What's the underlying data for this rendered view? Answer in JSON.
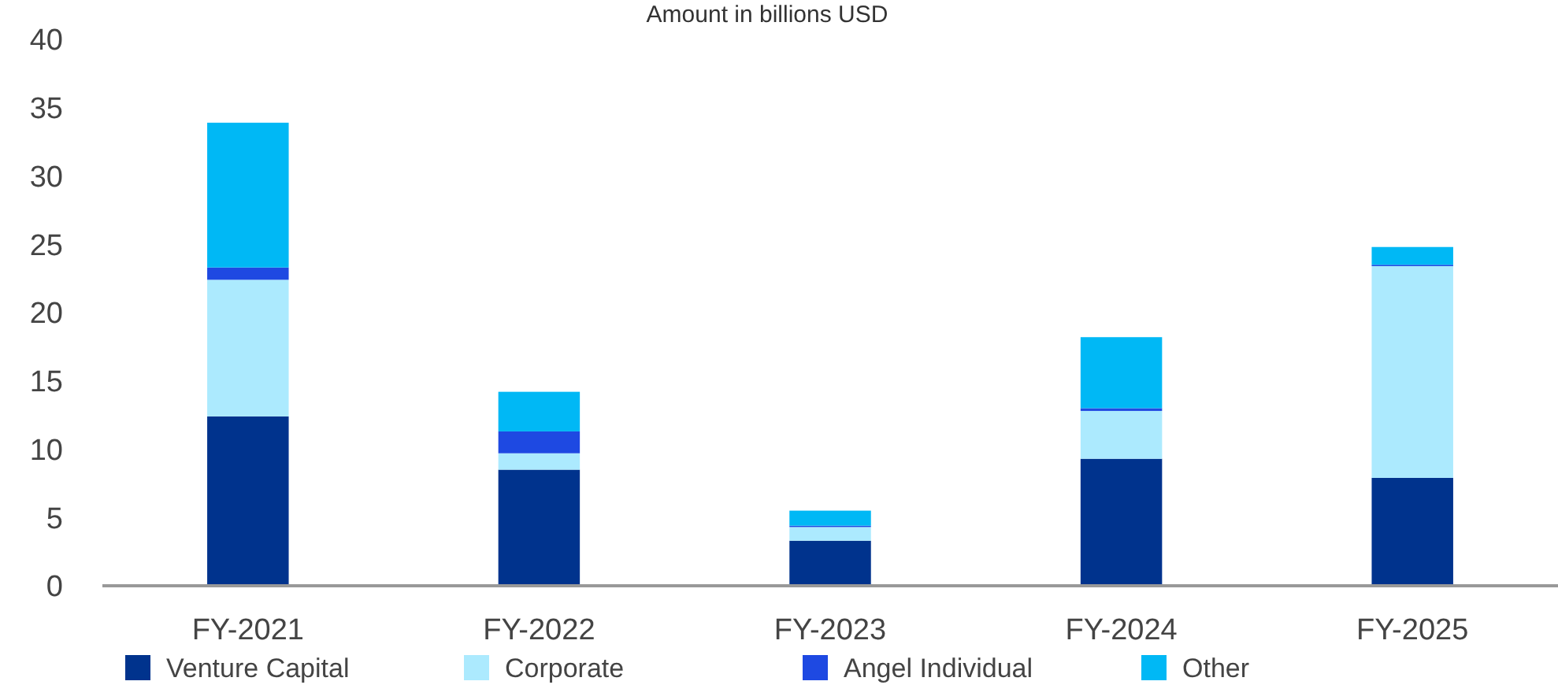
{
  "chart_data": {
    "type": "bar",
    "stacked": true,
    "title": "Amount in billions USD",
    "categories": [
      "FY-2021",
      "FY-2022",
      "FY-2023",
      "FY-2024",
      "FY-2025"
    ],
    "series": [
      {
        "name": "Venture Capital",
        "color": "#00338d",
        "values": [
          12.4,
          8.5,
          3.3,
          9.3,
          7.9
        ]
      },
      {
        "name": "Corporate",
        "color": "#aceafe",
        "values": [
          10.0,
          1.2,
          1.0,
          3.5,
          15.5
        ]
      },
      {
        "name": "Angel Individual",
        "color": "#1e49e2",
        "values": [
          0.9,
          1.6,
          0.1,
          0.2,
          0.1
        ]
      },
      {
        "name": "Other",
        "color": "#00b8f5",
        "values": [
          10.6,
          2.9,
          1.1,
          5.2,
          1.3
        ]
      }
    ],
    "ylim": [
      0,
      40
    ],
    "yticks": [
      0,
      5,
      10,
      15,
      20,
      25,
      30,
      35,
      40
    ],
    "grid": false,
    "legend": "bottom"
  }
}
